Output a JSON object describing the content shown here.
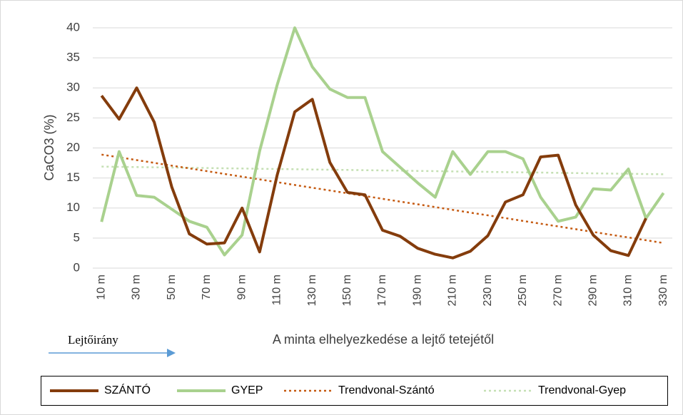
{
  "chart_data": {
    "type": "line",
    "ylabel": "CaCO3 (%)",
    "xlabel": "A minta elhelyezkedése a lejtő tetejétől",
    "annotation": "Lejtőirány",
    "categories": [
      "10 m",
      null,
      "30 m",
      null,
      "50 m",
      null,
      "70 m",
      null,
      "90 m",
      null,
      "110 m",
      null,
      "130 m",
      null,
      "150 m",
      null,
      "170 m",
      null,
      "190 m",
      null,
      "210 m",
      null,
      "230 m",
      null,
      "250 m",
      null,
      "270 m",
      null,
      "290 m",
      null,
      "310 m",
      null,
      "330 m"
    ],
    "series": [
      {
        "name": "SZÁNTÓ",
        "color": "#843c0c",
        "style": "solid",
        "values": [
          28.7,
          24.8,
          30,
          24.3,
          13.5,
          5.7,
          4,
          4.2,
          10,
          2.7,
          15.5,
          26,
          28.1,
          17.6,
          12.6,
          12.2,
          6.3,
          5.3,
          3.3,
          2.3,
          1.7,
          2.8,
          5.4,
          11,
          12.2,
          18.5,
          18.8,
          10.5,
          5.5,
          2.9,
          2.1,
          8.3,
          null
        ]
      },
      {
        "name": "GYEP",
        "color": "#a9d18e",
        "style": "solid",
        "values": [
          7.7,
          19.4,
          12.1,
          11.8,
          9.8,
          7.8,
          6.8,
          2.2,
          5.5,
          19.5,
          30.5,
          40,
          33.5,
          29.8,
          28.4,
          28.4,
          19.4,
          16.8,
          14.2,
          11.8,
          19.4,
          15.6,
          19.4,
          19.4,
          18.2,
          11.8,
          7.8,
          8.5,
          13.2,
          13,
          16.5,
          8.3,
          12.5
        ]
      },
      {
        "name": "Trendvonal-Szántó",
        "color": "#c55a11",
        "style": "dotted",
        "values": [
          18.9,
          18.44,
          17.98,
          17.52,
          17.06,
          16.6,
          16.14,
          15.68,
          15.22,
          14.76,
          14.3,
          13.84,
          13.38,
          12.92,
          12.46,
          12.0,
          11.54,
          11.08,
          10.62,
          10.16,
          9.7,
          9.24,
          8.78,
          8.32,
          7.86,
          7.4,
          6.94,
          6.48,
          6.02,
          5.56,
          5.1,
          4.64,
          4.18
        ]
      },
      {
        "name": "Trendvonal-Gyep",
        "color": "#c5e0b4",
        "style": "dotted",
        "values": [
          16.9,
          16.86,
          16.82,
          16.78,
          16.74,
          16.7,
          16.66,
          16.62,
          16.58,
          16.54,
          16.5,
          16.46,
          16.42,
          16.38,
          16.34,
          16.3,
          16.26,
          16.22,
          16.18,
          16.14,
          16.1,
          16.06,
          16.02,
          15.98,
          15.94,
          15.9,
          15.86,
          15.82,
          15.78,
          15.74,
          15.7,
          15.66,
          15.62
        ]
      }
    ],
    "ylim": [
      0,
      40
    ],
    "yticks": [
      0,
      5,
      10,
      15,
      20,
      25,
      30,
      35,
      40
    ],
    "grid": true,
    "legend": "bottom"
  }
}
